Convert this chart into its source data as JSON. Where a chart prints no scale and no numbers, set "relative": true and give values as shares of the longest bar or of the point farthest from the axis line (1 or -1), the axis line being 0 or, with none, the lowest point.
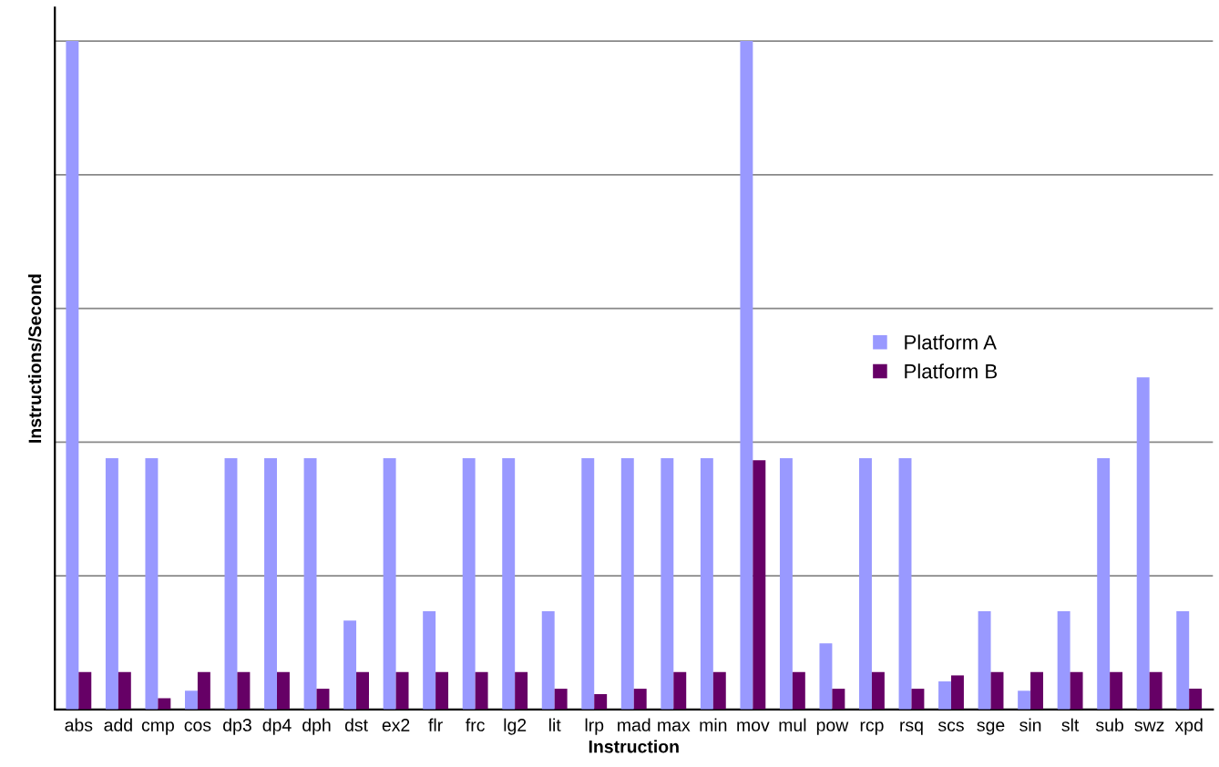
{
  "chart_data": {
    "type": "bar",
    "relative": true,
    "xlabel": "Instruction",
    "ylabel": "Instructions/Second",
    "categories": [
      "abs",
      "add",
      "cmp",
      "cos",
      "dp3",
      "dp4",
      "dph",
      "dst",
      "ex2",
      "flr",
      "frc",
      "lg2",
      "lit",
      "lrp",
      "mad",
      "max",
      "min",
      "mov",
      "mul",
      "pow",
      "rcp",
      "rsq",
      "scs",
      "sge",
      "sin",
      "slt",
      "sub",
      "swz",
      "xpd"
    ],
    "series": [
      {
        "name": "Platform A",
        "color": "#9999ff",
        "values": [
          1,
          0.376,
          0.376,
          0.028,
          0.376,
          0.376,
          0.376,
          0.133,
          0.376,
          0.147,
          0.376,
          0.376,
          0.147,
          0.376,
          0.376,
          0.376,
          0.376,
          1,
          0.376,
          0.099,
          0.376,
          0.376,
          0.042,
          0.147,
          0.028,
          0.147,
          0.376,
          0.497,
          0.147
        ]
      },
      {
        "name": "Platform B",
        "color": "#660066",
        "values": [
          0.056,
          0.056,
          0.017,
          0.056,
          0.056,
          0.056,
          0.031,
          0.056,
          0.056,
          0.056,
          0.056,
          0.056,
          0.031,
          0.023,
          0.031,
          0.056,
          0.056,
          0.373,
          0.056,
          0.031,
          0.056,
          0.031,
          0.051,
          0.056,
          0.056,
          0.056,
          0.056,
          0.056,
          0.031
        ]
      }
    ],
    "grid": "y",
    "legend": "center right"
  }
}
